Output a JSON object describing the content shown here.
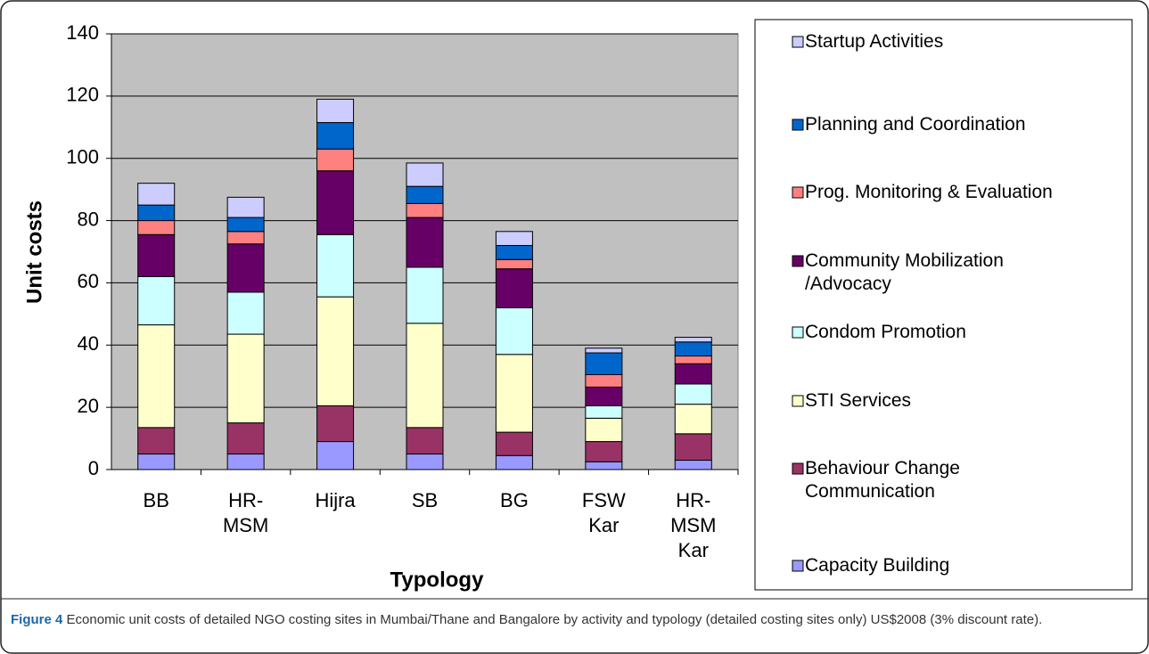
{
  "chart_data": {
    "type": "stacked_bar",
    "ylabel": "Unit costs",
    "xlabel": "Typology",
    "categories": [
      "BB",
      "HR-\nMSM",
      "Hijra",
      "SB",
      "BG",
      "FSW\nKar",
      "HR-\nMSM\nKar"
    ],
    "ylim": [
      0,
      140
    ],
    "yticks": [
      0,
      20,
      40,
      60,
      80,
      100,
      120,
      140
    ],
    "grid": true,
    "series": [
      {
        "name": "Capacity Building",
        "color": "#9999ff",
        "values": [
          5,
          5,
          9,
          5,
          4.5,
          2.5,
          3
        ]
      },
      {
        "name": "Behaviour Change\nCommunication",
        "color": "#993366",
        "values": [
          8.5,
          10,
          11.5,
          8.5,
          7.5,
          6.5,
          8.5
        ]
      },
      {
        "name": "STI Services",
        "color": "#ffffcc",
        "values": [
          33,
          28.5,
          35,
          33.5,
          25,
          7.5,
          9.5
        ]
      },
      {
        "name": "Condom Promotion",
        "color": "#ccffff",
        "values": [
          15.5,
          13.5,
          20,
          18,
          15,
          4,
          6.5
        ]
      },
      {
        "name": "Community Mobilization\n/Advocacy",
        "color": "#660066",
        "values": [
          13.5,
          15.5,
          20.5,
          16,
          12.5,
          6,
          6.5
        ]
      },
      {
        "name": "Prog. Monitoring & Evaluation",
        "color": "#ff8080",
        "values": [
          4.5,
          4,
          7,
          4.5,
          3,
          4,
          2.5
        ]
      },
      {
        "name": "Planning and Coordination",
        "color": "#0066cc",
        "values": [
          5,
          4.5,
          8.5,
          5.5,
          4.5,
          7,
          4.5
        ]
      },
      {
        "name": "Startup Activities",
        "color": "#ccccff",
        "values": [
          7,
          6.5,
          7.5,
          7.5,
          4.5,
          1.5,
          1.5
        ]
      }
    ]
  },
  "caption": {
    "label": "Figure 4",
    "text": "Economic unit costs of detailed NGO costing sites in Mumbai/Thane and Bangalore by activity and typology (detailed costing sites only) US$2008 (3% discount rate)."
  }
}
